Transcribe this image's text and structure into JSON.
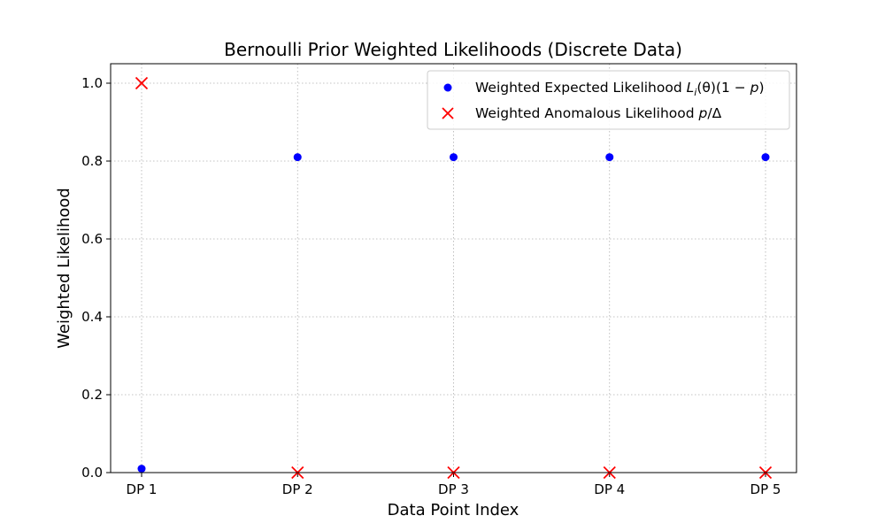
{
  "chart_data": {
    "type": "scatter",
    "title": "Bernoulli Prior Weighted Likelihoods (Discrete Data)",
    "xlabel": "Data Point Index",
    "ylabel": "Weighted Likelihood",
    "categories": [
      "DP 1",
      "DP 2",
      "DP 3",
      "DP 4",
      "DP 5"
    ],
    "y_ticks": [
      "0.0",
      "0.2",
      "0.4",
      "0.6",
      "0.8",
      "1.0"
    ],
    "ylim": [
      0.0,
      1.05
    ],
    "grid": true,
    "legend_position": "top-right",
    "series": [
      {
        "name": "Weighted Expected Likelihood L_i(θ)(1 − p)",
        "legend_parts": {
          "prefix": "Weighted Expected Likelihood ",
          "L": "L",
          "sub": "i",
          "rest": "(θ)(1 − ",
          "p": "p",
          "close": ")"
        },
        "marker": "circle",
        "color": "#0000ff",
        "values": [
          0.01,
          0.81,
          0.81,
          0.81,
          0.81
        ]
      },
      {
        "name": "Weighted Anomalous Likelihood p/Δ",
        "legend_parts": {
          "prefix": "Weighted Anomalous Likelihood ",
          "p": "p",
          "rest": "/Δ"
        },
        "marker": "x",
        "color": "#ff0000",
        "values": [
          1.0,
          0.0,
          0.0,
          0.0,
          0.0
        ]
      }
    ]
  }
}
